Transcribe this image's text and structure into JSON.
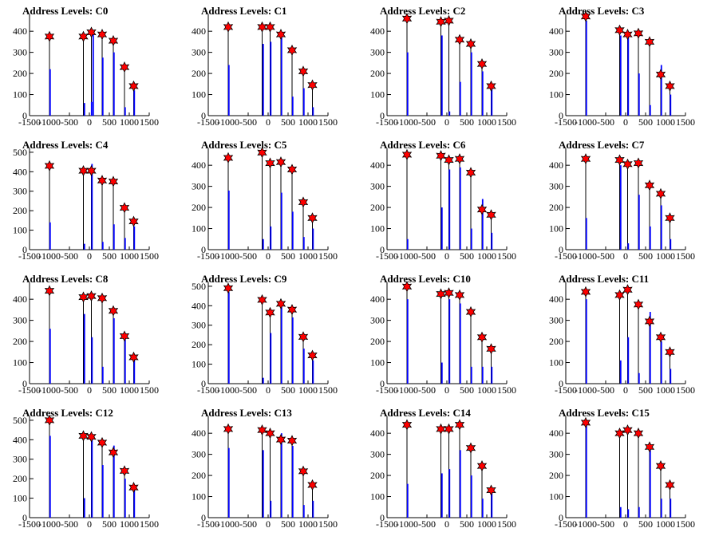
{
  "chart_data": [
    {
      "type": "bar",
      "title": "Address Levels: C0",
      "xlim": [
        -1500,
        1500
      ],
      "ylim": [
        0,
        480
      ],
      "yticks": [
        0,
        100,
        200,
        300,
        400
      ],
      "xticks": [
        -1500,
        -1000,
        -500,
        0,
        500,
        1000,
        1500
      ],
      "peaks": {
        "x": [
          -1000,
          -150,
          50,
          320,
          600,
          880,
          1110
        ],
        "y": [
          375,
          375,
          395,
          385,
          355,
          230,
          140
        ]
      },
      "bars": {
        "x": [
          -1000,
          -140,
          40,
          80,
          320,
          600,
          880,
          1110
        ],
        "y": [
          220,
          60,
          65,
          400,
          275,
          300,
          40,
          120
        ]
      }
    },
    {
      "type": "bar",
      "title": "Address Levels: C1",
      "xlim": [
        -1500,
        1500
      ],
      "ylim": [
        0,
        480
      ],
      "yticks": [
        0,
        100,
        200,
        300,
        400
      ],
      "xticks": [
        -1500,
        -1000,
        -500,
        0,
        500,
        1000,
        1500
      ],
      "peaks": {
        "x": [
          -1000,
          -150,
          50,
          320,
          600,
          880,
          1110
        ],
        "y": [
          420,
          420,
          420,
          385,
          310,
          210,
          145
        ]
      },
      "bars": {
        "x": [
          -1000,
          -140,
          50,
          320,
          600,
          880,
          1110
        ],
        "y": [
          240,
          340,
          350,
          375,
          90,
          130,
          40
        ]
      }
    },
    {
      "type": "bar",
      "title": "Address Levels: C2",
      "xlim": [
        -1500,
        1500
      ],
      "ylim": [
        0,
        480
      ],
      "yticks": [
        0,
        100,
        200,
        300,
        400
      ],
      "xticks": [
        -1500,
        -1000,
        -500,
        0,
        500,
        1000,
        1500
      ],
      "peaks": {
        "x": [
          -1000,
          -150,
          50,
          320,
          600,
          880,
          1110
        ],
        "y": [
          460,
          445,
          450,
          360,
          340,
          245,
          140
        ]
      },
      "bars": {
        "x": [
          -1000,
          -140,
          50,
          320,
          600,
          880,
          1110
        ],
        "y": [
          300,
          380,
          20,
          160,
          300,
          210,
          130
        ]
      }
    },
    {
      "type": "bar",
      "title": "Address Levels: C3",
      "xlim": [
        -1500,
        1500
      ],
      "ylim": [
        0,
        480
      ],
      "yticks": [
        0,
        100,
        200,
        300,
        400
      ],
      "xticks": [
        -1500,
        -1000,
        -500,
        0,
        500,
        1000,
        1500
      ],
      "peaks": {
        "x": [
          -1000,
          -150,
          50,
          320,
          600,
          880,
          1110
        ],
        "y": [
          470,
          405,
          385,
          390,
          350,
          195,
          140
        ]
      },
      "bars": {
        "x": [
          -1000,
          -140,
          50,
          320,
          600,
          880,
          1110
        ],
        "y": [
          450,
          380,
          390,
          200,
          50,
          240,
          100
        ]
      }
    },
    {
      "type": "bar",
      "title": "Address Levels: C4",
      "xlim": [
        -1500,
        1500
      ],
      "ylim": [
        0,
        520
      ],
      "yticks": [
        0,
        100,
        200,
        300,
        400,
        500
      ],
      "xticks": [
        -1500,
        -1000,
        -500,
        0,
        500,
        1000,
        1500
      ],
      "peaks": {
        "x": [
          -1000,
          -150,
          50,
          320,
          600,
          880,
          1110
        ],
        "y": [
          430,
          405,
          405,
          355,
          350,
          215,
          145
        ]
      },
      "bars": {
        "x": [
          -1000,
          -140,
          50,
          320,
          600,
          880,
          1110
        ],
        "y": [
          140,
          30,
          440,
          40,
          130,
          60,
          120
        ]
      }
    },
    {
      "type": "bar",
      "title": "Address Levels: C5",
      "xlim": [
        -1500,
        1500
      ],
      "ylim": [
        0,
        480
      ],
      "yticks": [
        0,
        100,
        200,
        300,
        400
      ],
      "xticks": [
        -1500,
        -1000,
        -500,
        0,
        500,
        1000,
        1500
      ],
      "peaks": {
        "x": [
          -1000,
          -150,
          50,
          320,
          600,
          880,
          1110
        ],
        "y": [
          435,
          460,
          410,
          415,
          380,
          225,
          150
        ]
      },
      "bars": {
        "x": [
          -1000,
          -140,
          50,
          320,
          600,
          880,
          1110
        ],
        "y": [
          280,
          50,
          110,
          270,
          180,
          60,
          100
        ]
      }
    },
    {
      "type": "bar",
      "title": "Address Levels: C6",
      "xlim": [
        -1500,
        1500
      ],
      "ylim": [
        0,
        480
      ],
      "yticks": [
        0,
        100,
        200,
        300,
        400
      ],
      "xticks": [
        -1500,
        -1000,
        -500,
        0,
        500,
        1000,
        1500
      ],
      "peaks": {
        "x": [
          -1000,
          -150,
          50,
          320,
          600,
          880,
          1110
        ],
        "y": [
          450,
          445,
          425,
          430,
          365,
          190,
          165
        ]
      },
      "bars": {
        "x": [
          -1000,
          -140,
          50,
          320,
          600,
          880,
          1110
        ],
        "y": [
          50,
          200,
          380,
          390,
          100,
          240,
          80
        ]
      }
    },
    {
      "type": "bar",
      "title": "Address Levels: C7",
      "xlim": [
        -1500,
        1500
      ],
      "ylim": [
        0,
        480
      ],
      "yticks": [
        0,
        100,
        200,
        300,
        400
      ],
      "xticks": [
        -1500,
        -1000,
        -500,
        0,
        500,
        1000,
        1500
      ],
      "peaks": {
        "x": [
          -1000,
          -150,
          50,
          320,
          600,
          880,
          1110
        ],
        "y": [
          430,
          425,
          405,
          410,
          305,
          265,
          150
        ]
      },
      "bars": {
        "x": [
          -1000,
          -140,
          50,
          320,
          600,
          880,
          1110
        ],
        "y": [
          150,
          400,
          30,
          260,
          110,
          210,
          50
        ]
      }
    },
    {
      "type": "bar",
      "title": "Address Levels: C8",
      "xlim": [
        -1500,
        1500
      ],
      "ylim": [
        0,
        480
      ],
      "yticks": [
        0,
        100,
        200,
        300,
        400
      ],
      "xticks": [
        -1500,
        -1000,
        -500,
        0,
        500,
        1000,
        1500
      ],
      "peaks": {
        "x": [
          -1000,
          -150,
          50,
          320,
          600,
          880,
          1110
        ],
        "y": [
          440,
          410,
          415,
          405,
          345,
          225,
          125
        ]
      },
      "bars": {
        "x": [
          -1000,
          -140,
          50,
          320,
          600,
          880,
          1110
        ],
        "y": [
          260,
          330,
          220,
          80,
          310,
          210,
          130
        ]
      }
    },
    {
      "type": "bar",
      "title": "Address Levels: C9",
      "xlim": [
        -1500,
        1500
      ],
      "ylim": [
        0,
        520
      ],
      "yticks": [
        0,
        100,
        200,
        300,
        400,
        500
      ],
      "xticks": [
        -1500,
        -1000,
        -500,
        0,
        500,
        1000,
        1500
      ],
      "peaks": {
        "x": [
          -1000,
          -150,
          50,
          320,
          600,
          880,
          1110
        ],
        "y": [
          490,
          430,
          365,
          410,
          380,
          240,
          145
        ]
      },
      "bars": {
        "x": [
          -1000,
          -140,
          50,
          320,
          600,
          880,
          1110
        ],
        "y": [
          470,
          30,
          260,
          400,
          340,
          180,
          120
        ]
      }
    },
    {
      "type": "bar",
      "title": "Address Levels: C10",
      "xlim": [
        -1500,
        1500
      ],
      "ylim": [
        0,
        480
      ],
      "yticks": [
        0,
        100,
        200,
        300,
        400
      ],
      "xticks": [
        -1500,
        -1000,
        -500,
        0,
        500,
        1000,
        1500
      ],
      "peaks": {
        "x": [
          -1000,
          -150,
          50,
          320,
          600,
          880,
          1110
        ],
        "y": [
          460,
          425,
          430,
          420,
          340,
          220,
          165
        ]
      },
      "bars": {
        "x": [
          -1000,
          -140,
          50,
          320,
          600,
          880,
          1110
        ],
        "y": [
          400,
          100,
          400,
          380,
          80,
          80,
          80
        ]
      }
    },
    {
      "type": "bar",
      "title": "Address Levels: C11",
      "xlim": [
        -1500,
        1500
      ],
      "ylim": [
        0,
        480
      ],
      "yticks": [
        0,
        100,
        200,
        300,
        400
      ],
      "xticks": [
        -1500,
        -1000,
        -500,
        0,
        500,
        1000,
        1500
      ],
      "peaks": {
        "x": [
          -1000,
          -150,
          50,
          320,
          600,
          880,
          1110
        ],
        "y": [
          435,
          420,
          445,
          375,
          295,
          220,
          150
        ]
      },
      "bars": {
        "x": [
          -1000,
          -140,
          50,
          320,
          600,
          880,
          1110
        ],
        "y": [
          400,
          110,
          220,
          50,
          340,
          200,
          70
        ]
      }
    },
    {
      "type": "bar",
      "title": "Address Levels: C12",
      "xlim": [
        -1500,
        1500
      ],
      "ylim": [
        0,
        520
      ],
      "yticks": [
        0,
        100,
        200,
        300,
        400,
        500
      ],
      "xticks": [
        -1500,
        -1000,
        -500,
        0,
        500,
        1000,
        1500
      ],
      "peaks": {
        "x": [
          -1000,
          -150,
          50,
          320,
          600,
          880,
          1110
        ],
        "y": [
          500,
          420,
          415,
          385,
          335,
          240,
          155
        ]
      },
      "bars": {
        "x": [
          -1000,
          -140,
          50,
          320,
          600,
          880,
          1110
        ],
        "y": [
          420,
          100,
          400,
          270,
          370,
          200,
          150
        ]
      }
    },
    {
      "type": "bar",
      "title": "Address Levels: C13",
      "xlim": [
        -1500,
        1500
      ],
      "ylim": [
        0,
        480
      ],
      "yticks": [
        0,
        100,
        200,
        300,
        400
      ],
      "xticks": [
        -1500,
        -1000,
        -500,
        0,
        500,
        1000,
        1500
      ],
      "peaks": {
        "x": [
          -1000,
          -150,
          50,
          320,
          600,
          880,
          1110
        ],
        "y": [
          420,
          415,
          400,
          370,
          365,
          220,
          155
        ]
      },
      "bars": {
        "x": [
          -1000,
          -140,
          50,
          320,
          600,
          880,
          1110
        ],
        "y": [
          330,
          320,
          80,
          400,
          340,
          60,
          80
        ]
      }
    },
    {
      "type": "bar",
      "title": "Address Levels: C14",
      "xlim": [
        -1500,
        1500
      ],
      "ylim": [
        0,
        480
      ],
      "yticks": [
        0,
        100,
        200,
        300,
        400
      ],
      "xticks": [
        -1500,
        -1000,
        -500,
        0,
        500,
        1000,
        1500
      ],
      "peaks": {
        "x": [
          -1000,
          -150,
          50,
          320,
          600,
          880,
          1110
        ],
        "y": [
          440,
          420,
          420,
          440,
          330,
          245,
          130
        ]
      },
      "bars": {
        "x": [
          -1000,
          -140,
          50,
          320,
          600,
          880,
          1110
        ],
        "y": [
          160,
          210,
          230,
          320,
          200,
          90,
          120
        ]
      }
    },
    {
      "type": "bar",
      "title": "Address Levels: C15",
      "xlim": [
        -1500,
        1500
      ],
      "ylim": [
        0,
        480
      ],
      "yticks": [
        0,
        100,
        200,
        300,
        400
      ],
      "xticks": [
        -1500,
        -1000,
        -500,
        0,
        500,
        1000,
        1500
      ],
      "peaks": {
        "x": [
          -1000,
          -150,
          50,
          320,
          600,
          880,
          1110
        ],
        "y": [
          450,
          400,
          415,
          400,
          335,
          245,
          155
        ]
      },
      "bars": {
        "x": [
          -1000,
          -140,
          50,
          320,
          600,
          880,
          1110
        ],
        "y": [
          440,
          50,
          40,
          50,
          320,
          90,
          90
        ]
      }
    }
  ],
  "colors": {
    "spike": "#000000",
    "bar": "#0000ff",
    "marker": "#ff0000",
    "marker_edge": "#000000"
  }
}
